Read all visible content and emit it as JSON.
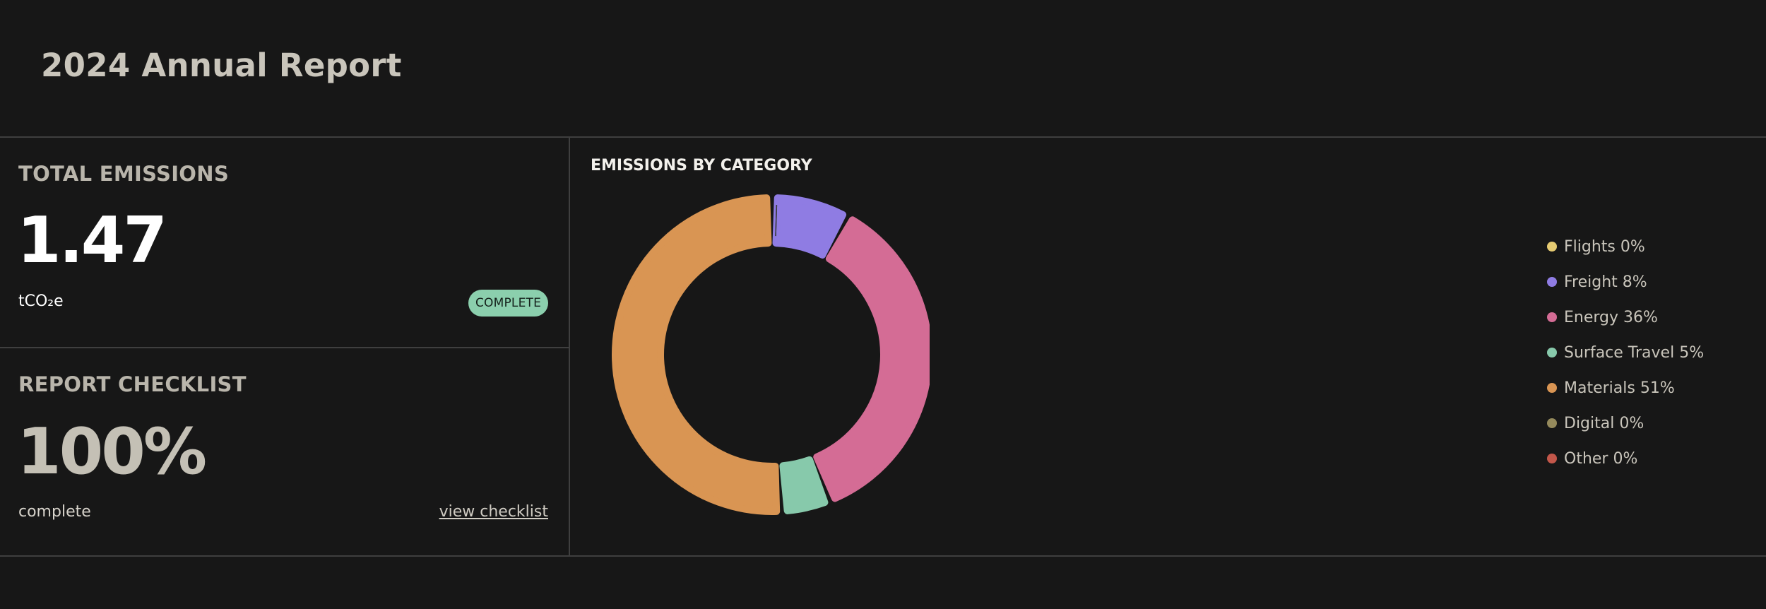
{
  "header": {
    "title": "2024 Annual Report"
  },
  "total_emissions": {
    "heading": "TOTAL EMISSIONS",
    "value": "1.47",
    "unit": "tCO₂e",
    "status": "COMPLETE"
  },
  "report_checklist": {
    "heading": "REPORT CHECKLIST",
    "value": "100%",
    "caption": "complete",
    "link_label": "view checklist"
  },
  "chart_data": {
    "type": "pie",
    "title": "EMISSIONS BY CATEGORY",
    "donut": true,
    "legend_position": "right",
    "categories": [
      "Flights",
      "Freight",
      "Energy",
      "Surface Travel",
      "Materials",
      "Digital",
      "Other"
    ],
    "values": [
      0,
      8,
      36,
      5,
      51,
      0,
      0
    ],
    "labels": [
      "Flights 0%",
      "Freight 8%",
      "Energy 36%",
      "Surface Travel 5%",
      "Materials 51%",
      "Digital 0%",
      "Other 0%"
    ],
    "colors": [
      "#e6cb72",
      "#8f7ce3",
      "#d46c95",
      "#87c9ab",
      "#d99553",
      "#958a5c",
      "#c3574a"
    ]
  }
}
